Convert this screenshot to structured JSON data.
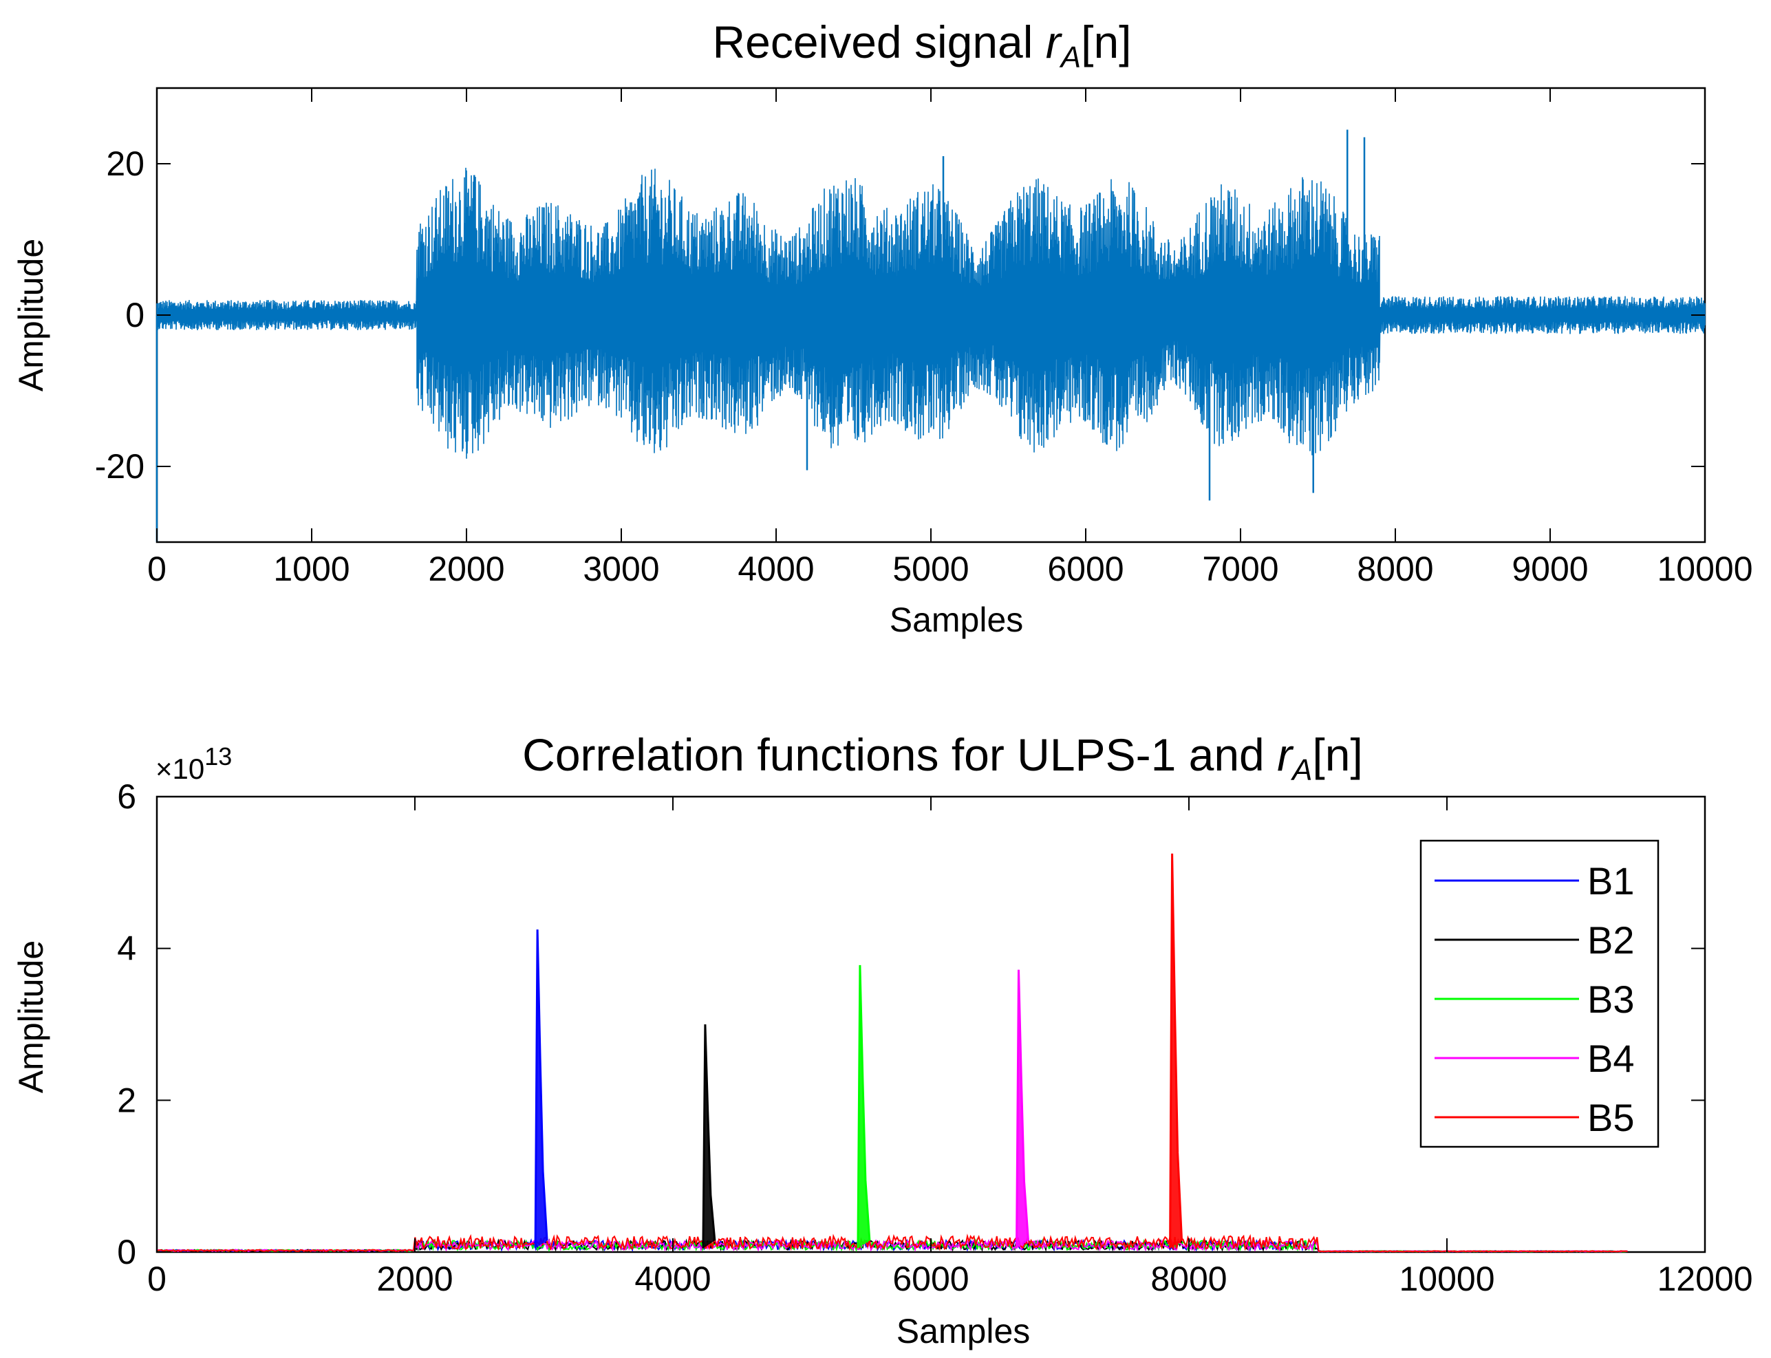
{
  "chart_data": [
    {
      "type": "line",
      "title_main": "Received signal ",
      "title_var": "r",
      "title_sub": "A",
      "title_suffix": "[n]",
      "xlabel": "Samples",
      "ylabel": "Amplitude",
      "xlim": [
        0,
        10000
      ],
      "ylim": [
        -30,
        30
      ],
      "xticks": [
        0,
        1000,
        2000,
        3000,
        4000,
        5000,
        6000,
        7000,
        8000,
        9000,
        10000
      ],
      "xtick_labels": [
        "0",
        "1000",
        "2000",
        "3000",
        "4000",
        "5000",
        "6000",
        "7000",
        "8000",
        "9000",
        "10000"
      ],
      "yticks": [
        -20,
        0,
        20
      ],
      "ytick_labels": [
        "-20",
        "0",
        "20"
      ],
      "line_color": "#0072BD",
      "segments": [
        {
          "start": 0,
          "end": 1680,
          "amplitude": 2
        },
        {
          "start": 1680,
          "end": 7900,
          "amplitude": 17
        },
        {
          "start": 7900,
          "end": 10000,
          "amplitude": 2.5
        }
      ],
      "peaks": [
        {
          "x": 2050,
          "y": 18.5
        },
        {
          "x": 2050,
          "y": -15
        },
        {
          "x": 4200,
          "y": -20.5
        },
        {
          "x": 5080,
          "y": 21
        },
        {
          "x": 6800,
          "y": -24.5
        },
        {
          "x": 7470,
          "y": -23.5
        },
        {
          "x": 7690,
          "y": 24.5
        },
        {
          "x": 7800,
          "y": 23.5
        },
        {
          "x": 0,
          "y": -30
        }
      ]
    },
    {
      "type": "line",
      "title_main": "Correlation functions for ULPS-1 and ",
      "title_var": "r",
      "title_sub": "A",
      "title_suffix": "[n]",
      "xlabel": "Samples",
      "ylabel": "Amplitude",
      "y_multiplier": "×10",
      "y_exponent": "13",
      "xlim": [
        0,
        12000
      ],
      "ylim": [
        0,
        6
      ],
      "xticks": [
        0,
        2000,
        4000,
        6000,
        8000,
        10000,
        12000
      ],
      "xtick_labels": [
        "0",
        "2000",
        "4000",
        "6000",
        "8000",
        "10000",
        "12000"
      ],
      "yticks": [
        0,
        2,
        4,
        6
      ],
      "ytick_labels": [
        "0",
        "2",
        "4",
        "6"
      ],
      "legend_position": "top-right",
      "series": [
        {
          "name": "B1",
          "color": "#0000FF",
          "peak_x": 2950,
          "peak_y": 4.25
        },
        {
          "name": "B2",
          "color": "#000000",
          "peak_x": 4250,
          "peak_y": 3.0
        },
        {
          "name": "B3",
          "color": "#00FF00",
          "peak_x": 5450,
          "peak_y": 3.78
        },
        {
          "name": "B4",
          "color": "#FF00FF",
          "peak_x": 6680,
          "peak_y": 3.72
        },
        {
          "name": "B5",
          "color": "#FF0000",
          "peak_x": 7870,
          "peak_y": 5.25
        }
      ],
      "noise_floor": {
        "start": 2000,
        "end": 9000,
        "level": 0.15,
        "tail_end": 11400
      }
    }
  ]
}
